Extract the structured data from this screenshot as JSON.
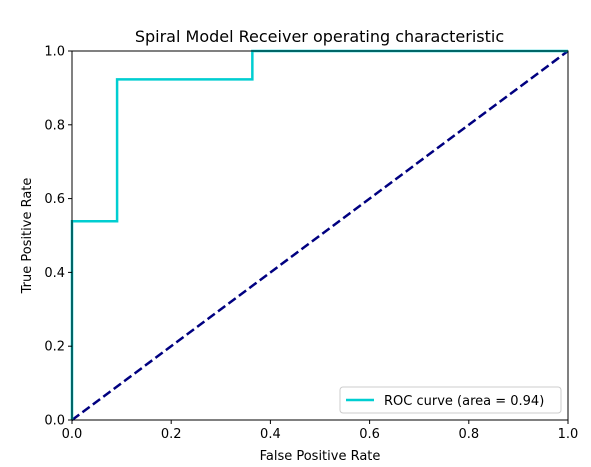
{
  "chart_data": {
    "type": "line",
    "title": "Spiral Model Receiver operating characteristic",
    "xlabel": "False Positive Rate",
    "ylabel": "True Positive Rate",
    "xlim": [
      0,
      1
    ],
    "ylim": [
      0,
      1
    ],
    "xticks": [
      "0.0",
      "0.2",
      "0.4",
      "0.6",
      "0.8",
      "1.0"
    ],
    "yticks": [
      "0.0",
      "0.2",
      "0.4",
      "0.6",
      "0.8",
      "1.0"
    ],
    "grid": false,
    "legend_position": "lower-right",
    "series": [
      {
        "name": "ROC curve (area = 0.94)",
        "color": "#00CED1",
        "style": "solid",
        "x": [
          0.0,
          0.0,
          0.0909,
          0.0909,
          0.3636,
          0.3636,
          1.0
        ],
        "y": [
          0.0,
          0.5385,
          0.5385,
          0.9231,
          0.9231,
          1.0,
          1.0
        ]
      },
      {
        "color": "#000080",
        "style": "dashed",
        "x": [
          0.0,
          1.0
        ],
        "y": [
          0.0,
          1.0
        ]
      }
    ]
  }
}
